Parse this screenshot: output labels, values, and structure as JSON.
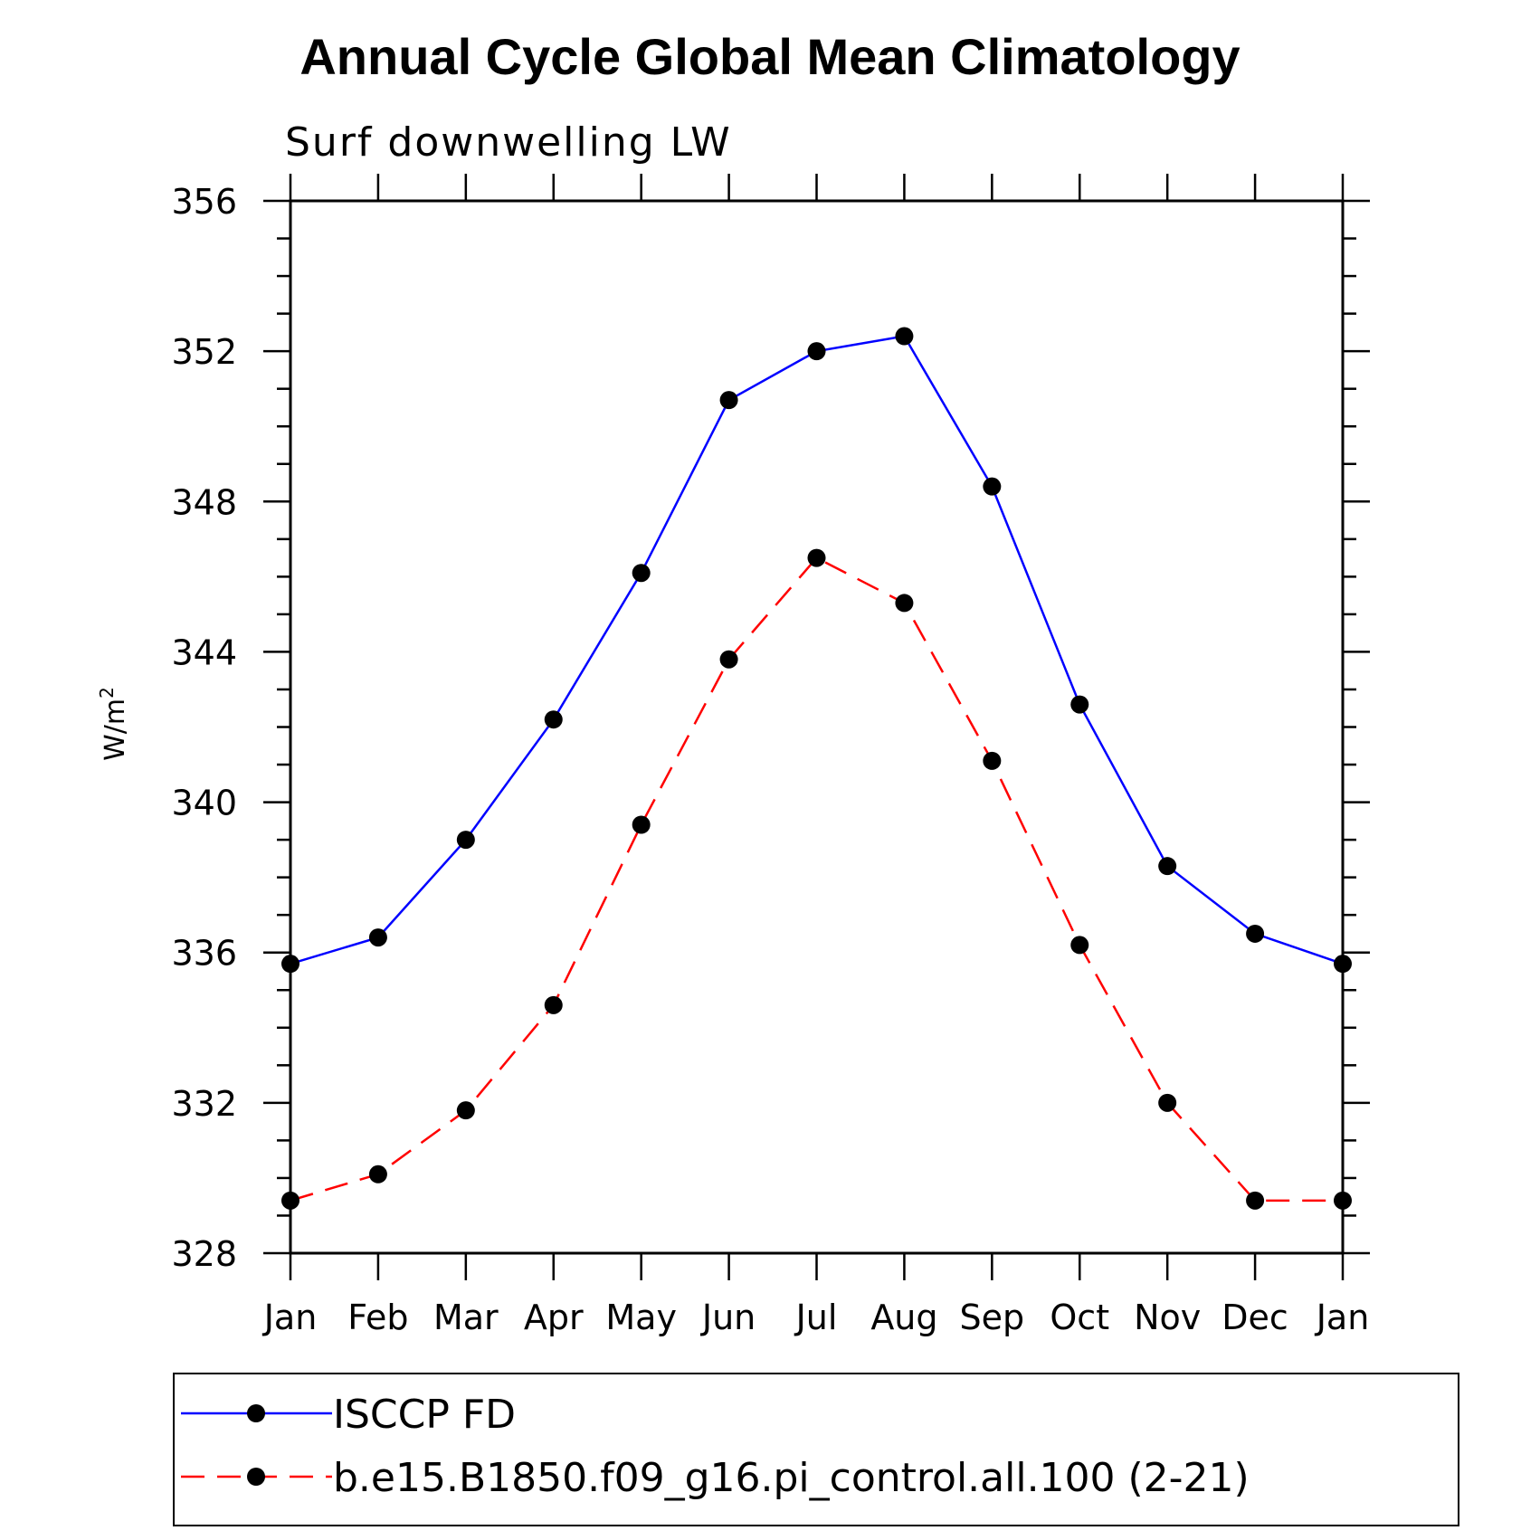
{
  "chart_data": {
    "type": "line",
    "title": "Annual Cycle Global Mean Climatology",
    "subtitle": "Surf downwelling LW",
    "ylabel": "W/m",
    "ylabel_superscript": "2",
    "xlabel": "",
    "categories": [
      "Jan",
      "Feb",
      "Mar",
      "Apr",
      "May",
      "Jun",
      "Jul",
      "Aug",
      "Sep",
      "Oct",
      "Nov",
      "Dec",
      "Jan"
    ],
    "ylim": [
      328,
      356
    ],
    "yticks": [
      328,
      332,
      336,
      340,
      344,
      348,
      352,
      356
    ],
    "yticks_labels": [
      "328",
      "332",
      "336",
      "340",
      "344",
      "348",
      "352",
      "356"
    ],
    "series": [
      {
        "name": "ISCCP FD",
        "color": "#0000ff",
        "line_style": "solid",
        "marker": "filled-circle",
        "values": [
          335.7,
          336.4,
          339.0,
          342.2,
          346.1,
          350.7,
          352.0,
          352.4,
          348.4,
          342.6,
          338.3,
          336.5,
          335.7
        ]
      },
      {
        "name": "b.e15.B1850.f09_g16.pi_control.all.100 (2-21)",
        "color": "#ff0000",
        "line_style": "dashed",
        "marker": "filled-circle",
        "values": [
          329.4,
          330.1,
          331.8,
          334.6,
          339.4,
          343.8,
          346.5,
          345.3,
          341.1,
          336.2,
          332.0,
          329.4,
          329.4
        ]
      }
    ],
    "legend_position": "bottom",
    "grid": false
  }
}
